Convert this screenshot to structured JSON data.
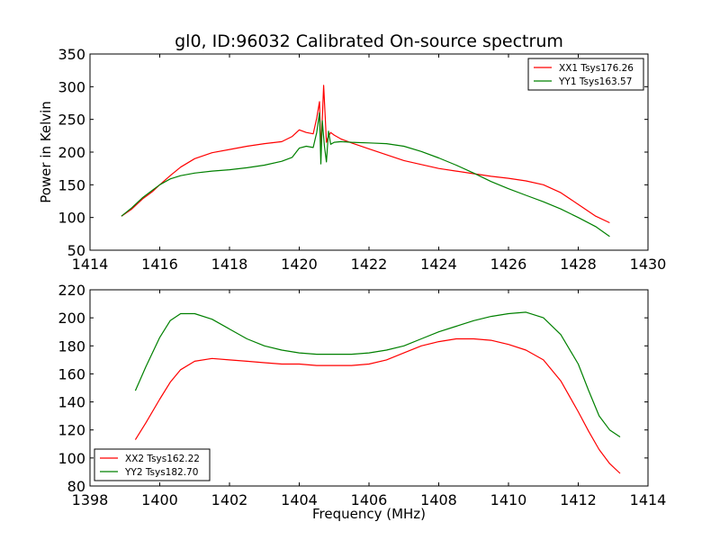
{
  "chart_data": [
    {
      "type": "line",
      "title": "gl0, ID:96032 Calibrated On-source spectrum",
      "xlabel": "",
      "ylabel": "Power in Kelvin",
      "xlim": [
        1414,
        1430
      ],
      "ylim": [
        50,
        350
      ],
      "xticks": [
        1414,
        1416,
        1418,
        1420,
        1422,
        1424,
        1426,
        1428,
        1430
      ],
      "yticks": [
        50,
        100,
        150,
        200,
        250,
        300,
        350
      ],
      "legend_position": "top-right",
      "grid": false,
      "series": [
        {
          "name": "XX1 Tsys176.26",
          "color": "#ff0000",
          "x": [
            1414.9,
            1415.2,
            1415.5,
            1415.8,
            1416.0,
            1416.3,
            1416.6,
            1417.0,
            1417.5,
            1418.0,
            1418.5,
            1419.0,
            1419.5,
            1419.8,
            1420.0,
            1420.2,
            1420.4,
            1420.5,
            1420.58,
            1420.62,
            1420.66,
            1420.7,
            1420.74,
            1420.78,
            1420.82,
            1420.9,
            1421.0,
            1421.2,
            1421.5,
            1422.0,
            1422.5,
            1423.0,
            1423.5,
            1424.0,
            1424.5,
            1425.0,
            1425.5,
            1426.0,
            1426.5,
            1427.0,
            1427.5,
            1428.0,
            1428.5,
            1428.9
          ],
          "y": [
            102,
            113,
            128,
            140,
            150,
            164,
            177,
            190,
            199,
            204,
            209,
            213,
            216,
            224,
            234,
            230,
            228,
            252,
            277,
            205,
            250,
            302,
            258,
            215,
            222,
            230,
            226,
            220,
            214,
            205,
            196,
            187,
            181,
            175,
            171,
            167,
            163,
            160,
            156,
            150,
            138,
            120,
            102,
            92
          ]
        },
        {
          "name": "YY1 Tsys163.57",
          "color": "#008000",
          "x": [
            1414.9,
            1415.2,
            1415.5,
            1415.8,
            1416.0,
            1416.3,
            1416.6,
            1417.0,
            1417.5,
            1418.0,
            1418.5,
            1419.0,
            1419.5,
            1419.8,
            1420.0,
            1420.2,
            1420.4,
            1420.5,
            1420.58,
            1420.62,
            1420.66,
            1420.72,
            1420.78,
            1420.84,
            1420.9,
            1421.0,
            1421.2,
            1421.5,
            1422.0,
            1422.5,
            1423.0,
            1423.5,
            1424.0,
            1424.5,
            1425.0,
            1425.5,
            1426.0,
            1426.5,
            1427.0,
            1427.5,
            1428.0,
            1428.5,
            1428.9
          ],
          "y": [
            102,
            115,
            130,
            142,
            150,
            159,
            164,
            168,
            171,
            173,
            176,
            180,
            186,
            192,
            206,
            209,
            207,
            230,
            260,
            182,
            248,
            210,
            185,
            232,
            212,
            215,
            216,
            215,
            214,
            213,
            209,
            201,
            191,
            180,
            168,
            155,
            144,
            134,
            124,
            113,
            100,
            86,
            71
          ]
        }
      ]
    },
    {
      "type": "line",
      "title": "",
      "xlabel": "Frequency (MHz)",
      "ylabel": "",
      "xlim": [
        1398,
        1414
      ],
      "ylim": [
        80,
        220
      ],
      "xticks": [
        1398,
        1400,
        1402,
        1404,
        1406,
        1408,
        1410,
        1412,
        1414
      ],
      "yticks": [
        80,
        100,
        120,
        140,
        160,
        180,
        200,
        220
      ],
      "legend_position": "bottom-left",
      "grid": false,
      "series": [
        {
          "name": "XX2 Tsys162.22",
          "color": "#ff0000",
          "x": [
            1399.3,
            1399.6,
            1400.0,
            1400.3,
            1400.6,
            1401.0,
            1401.5,
            1402.0,
            1402.5,
            1403.0,
            1403.5,
            1404.0,
            1404.5,
            1405.0,
            1405.5,
            1406.0,
            1406.5,
            1407.0,
            1407.5,
            1408.0,
            1408.5,
            1409.0,
            1409.5,
            1410.0,
            1410.5,
            1411.0,
            1411.5,
            1412.0,
            1412.3,
            1412.6,
            1412.9,
            1413.2
          ],
          "y": [
            113,
            125,
            142,
            154,
            163,
            169,
            171,
            170,
            169,
            168,
            167,
            167,
            166,
            166,
            166,
            167,
            170,
            175,
            180,
            183,
            185,
            185,
            184,
            181,
            177,
            170,
            155,
            133,
            119,
            106,
            96,
            89
          ]
        },
        {
          "name": "YY2 Tsys182.70",
          "color": "#008000",
          "x": [
            1399.3,
            1399.6,
            1400.0,
            1400.3,
            1400.6,
            1401.0,
            1401.5,
            1402.0,
            1402.5,
            1403.0,
            1403.5,
            1404.0,
            1404.5,
            1405.0,
            1405.5,
            1406.0,
            1406.5,
            1407.0,
            1407.5,
            1408.0,
            1408.5,
            1409.0,
            1409.5,
            1410.0,
            1410.5,
            1411.0,
            1411.5,
            1412.0,
            1412.3,
            1412.6,
            1412.9,
            1413.2
          ],
          "y": [
            148,
            165,
            186,
            198,
            203,
            203,
            199,
            192,
            185,
            180,
            177,
            175,
            174,
            174,
            174,
            175,
            177,
            180,
            185,
            190,
            194,
            198,
            201,
            203,
            204,
            200,
            188,
            167,
            148,
            130,
            120,
            115
          ]
        }
      ]
    }
  ]
}
